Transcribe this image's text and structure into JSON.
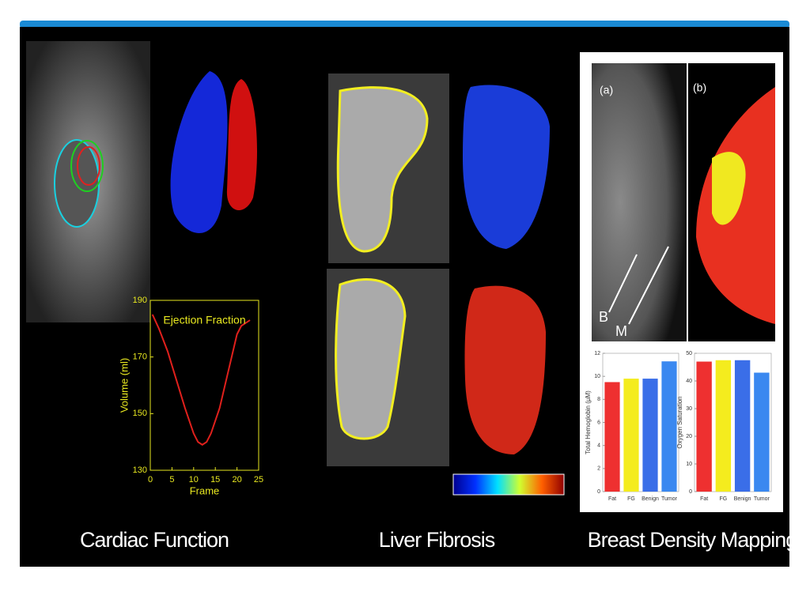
{
  "captions": [
    "Cardiac Function",
    "Liver Fibrosis",
    "Breast Density Mapping"
  ],
  "panel_labels": [
    "(a)",
    "(b)",
    "B",
    "M"
  ],
  "chart_data": [
    {
      "type": "line",
      "title": "Ejection Fraction",
      "xlabel": "Frame",
      "ylabel": "Volume (ml)",
      "x": [
        0.5,
        2,
        4,
        6,
        8,
        10,
        11,
        12,
        13,
        14,
        16,
        18,
        20,
        21,
        22,
        23
      ],
      "values": [
        185,
        180,
        172,
        162,
        152,
        143,
        140,
        139,
        140,
        143,
        152,
        165,
        178,
        181,
        182,
        183
      ],
      "color": "#e0201c",
      "xlim": [
        0,
        25
      ],
      "xticks": [
        0,
        5,
        10,
        15,
        20,
        25
      ],
      "ylim": [
        130,
        190
      ],
      "yticks": [
        130,
        150,
        170,
        190
      ]
    },
    {
      "type": "bar",
      "ylabel": "Total Hemoglobin (µM)",
      "categories": [
        "Fat",
        "FG",
        "Benign",
        "Tumor"
      ],
      "values": [
        9.5,
        9.8,
        9.8,
        11.3
      ],
      "colors": [
        "#ee3030",
        "#f4ec1e",
        "#3a6ee8",
        "#3a88f0"
      ],
      "ylim": [
        0,
        12
      ],
      "yticks": [
        0,
        2,
        4,
        6,
        8,
        10,
        12
      ]
    },
    {
      "type": "bar",
      "ylabel": "Oxygen Saturation",
      "categories": [
        "Fat",
        "FG",
        "Benign",
        "Tumor"
      ],
      "values": [
        47,
        47.5,
        47.5,
        43
      ],
      "colors": [
        "#ee3030",
        "#f4ec1e",
        "#3a6ee8",
        "#3a88f0"
      ],
      "ylim": [
        0,
        50
      ],
      "yticks": [
        0,
        10,
        20,
        30,
        40,
        50
      ]
    }
  ]
}
